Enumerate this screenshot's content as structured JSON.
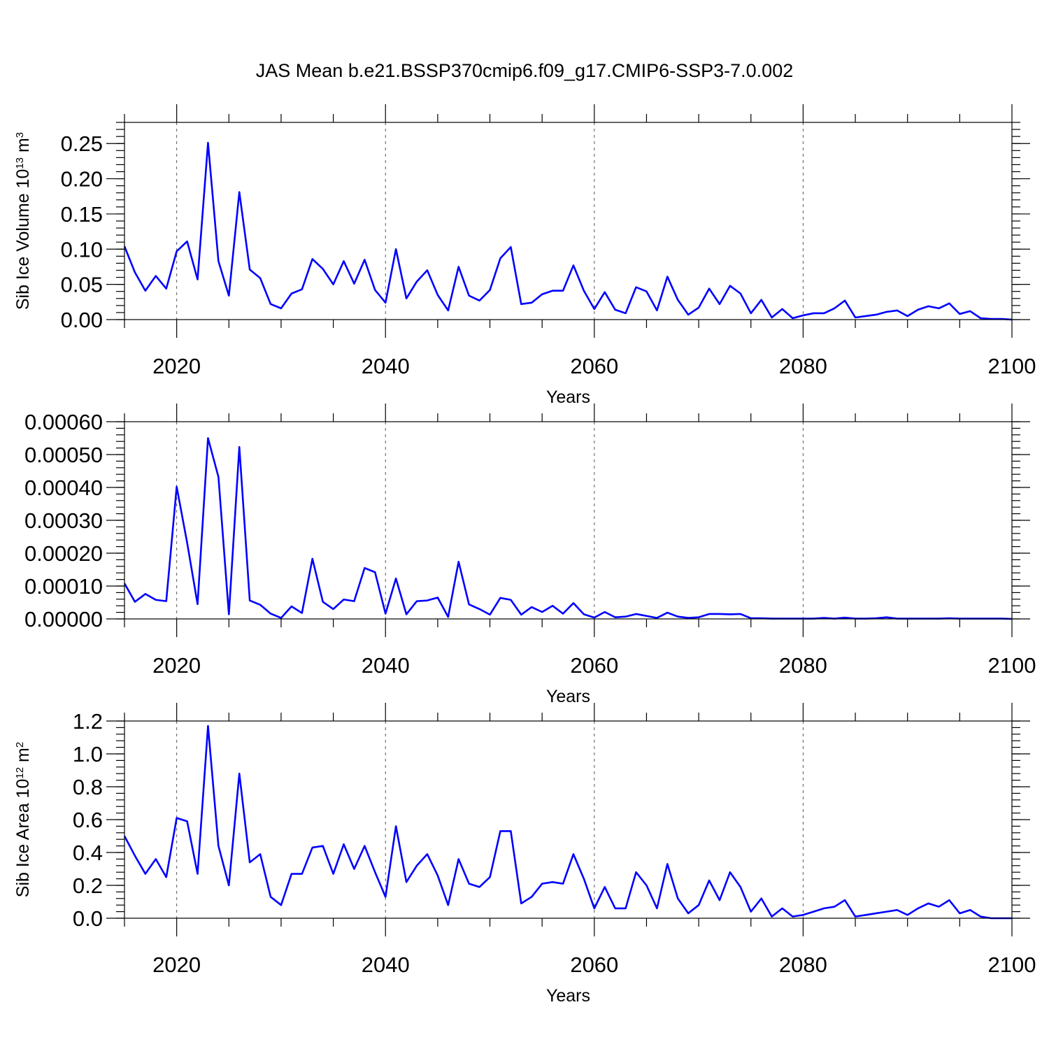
{
  "title": "JAS Mean b.e21.BSSP370cmip6.f09_g17.CMIP6-SSP3-7.0.002",
  "line_color": "#0000ff",
  "chart_data": [
    {
      "type": "line",
      "ylabel": "Sib Ice Volume 10",
      "ylabel_sup": "13",
      "ylabel_unit": " m",
      "ylabel_unit_sup": "3",
      "xlabel": "Years",
      "xlim": [
        2015,
        2100
      ],
      "ylim": [
        0,
        0.28
      ],
      "xticks": [
        "2020",
        "2040",
        "2060",
        "2080",
        "2100"
      ],
      "yticks": [
        "0.00",
        "0.05",
        "0.10",
        "0.15",
        "0.20",
        "0.25"
      ],
      "grid_x": true,
      "x": [
        2015,
        2016,
        2017,
        2018,
        2019,
        2020,
        2021,
        2022,
        2023,
        2024,
        2025,
        2026,
        2027,
        2028,
        2029,
        2030,
        2031,
        2032,
        2033,
        2034,
        2035,
        2036,
        2037,
        2038,
        2039,
        2040,
        2041,
        2042,
        2043,
        2044,
        2045,
        2046,
        2047,
        2048,
        2049,
        2050,
        2051,
        2052,
        2053,
        2054,
        2055,
        2056,
        2057,
        2058,
        2059,
        2060,
        2061,
        2062,
        2063,
        2064,
        2065,
        2066,
        2067,
        2068,
        2069,
        2070,
        2071,
        2072,
        2073,
        2074,
        2075,
        2076,
        2077,
        2078,
        2079,
        2080,
        2081,
        2082,
        2083,
        2084,
        2085,
        2086,
        2087,
        2088,
        2089,
        2090,
        2091,
        2092,
        2093,
        2094,
        2095,
        2096,
        2097,
        2098,
        2099,
        2100
      ],
      "values": [
        0.104,
        0.067,
        0.041,
        0.062,
        0.044,
        0.097,
        0.111,
        0.057,
        0.251,
        0.083,
        0.034,
        0.181,
        0.071,
        0.059,
        0.022,
        0.016,
        0.037,
        0.043,
        0.086,
        0.072,
        0.05,
        0.083,
        0.051,
        0.085,
        0.042,
        0.024,
        0.1,
        0.03,
        0.054,
        0.07,
        0.035,
        0.013,
        0.075,
        0.034,
        0.027,
        0.042,
        0.087,
        0.103,
        0.022,
        0.024,
        0.036,
        0.041,
        0.041,
        0.077,
        0.041,
        0.015,
        0.039,
        0.014,
        0.009,
        0.046,
        0.04,
        0.013,
        0.061,
        0.028,
        0.007,
        0.017,
        0.044,
        0.022,
        0.048,
        0.037,
        0.009,
        0.028,
        0.003,
        0.015,
        0.002,
        0.006,
        0.009,
        0.009,
        0.016,
        0.027,
        0.003,
        0.005,
        0.007,
        0.011,
        0.013,
        0.005,
        0.014,
        0.019,
        0.016,
        0.023,
        0.008,
        0.012,
        0.002,
        0.001,
        0.001,
        0.0
      ]
    },
    {
      "type": "line",
      "ylabel": "",
      "xlabel": "Years",
      "xlim": [
        2015,
        2100
      ],
      "ylim": [
        0,
        0.0006
      ],
      "xticks": [
        "2020",
        "2040",
        "2060",
        "2080",
        "2100"
      ],
      "yticks": [
        "0.00000",
        "0.00010",
        "0.00020",
        "0.00030",
        "0.00040",
        "0.00050",
        "0.00060"
      ],
      "grid_x": true,
      "x": [
        2015,
        2016,
        2017,
        2018,
        2019,
        2020,
        2021,
        2022,
        2023,
        2024,
        2025,
        2026,
        2027,
        2028,
        2029,
        2030,
        2031,
        2032,
        2033,
        2034,
        2035,
        2036,
        2037,
        2038,
        2039,
        2040,
        2041,
        2042,
        2043,
        2044,
        2045,
        2046,
        2047,
        2048,
        2049,
        2050,
        2051,
        2052,
        2053,
        2054,
        2055,
        2056,
        2057,
        2058,
        2059,
        2060,
        2061,
        2062,
        2063,
        2064,
        2065,
        2066,
        2067,
        2068,
        2069,
        2070,
        2071,
        2072,
        2073,
        2074,
        2075,
        2076,
        2077,
        2078,
        2079,
        2080,
        2081,
        2082,
        2083,
        2084,
        2085,
        2086,
        2087,
        2088,
        2089,
        2090,
        2091,
        2092,
        2093,
        2094,
        2095,
        2096,
        2097,
        2098,
        2099,
        2100
      ],
      "values": [
        0.000108,
        5.2e-05,
        7.6e-05,
        5.8e-05,
        5.4e-05,
        0.000402,
        0.000232,
        4.5e-05,
        0.00055,
        0.000432,
        1.4e-05,
        0.000523,
        5.6e-05,
        4.3e-05,
        1.6e-05,
        3e-06,
        3.8e-05,
        1.8e-05,
        0.000183,
        5.2e-05,
        3e-05,
        5.9e-05,
        5.4e-05,
        0.000155,
        0.000142,
        1.6e-05,
        0.000123,
        1.4e-05,
        5.4e-05,
        5.6e-05,
        6.5e-05,
        6e-06,
        0.000174,
        4.4e-05,
        3e-05,
        1.3e-05,
        6.4e-05,
        5.8e-05,
        1.3e-05,
        3.6e-05,
        2.1e-05,
        4e-05,
        1.6e-05,
        4.8e-05,
        1.4e-05,
        4e-06,
        2.1e-05,
        5e-06,
        7e-06,
        1.5e-05,
        9e-06,
        3e-06,
        1.9e-05,
        7e-06,
        3e-06,
        5e-06,
        1.5e-05,
        1.5e-05,
        1.4e-05,
        1.5e-05,
        2e-06,
        2e-06,
        1e-06,
        1e-06,
        1e-06,
        1e-06,
        1e-06,
        3e-06,
        1e-06,
        4e-06,
        1e-06,
        1e-06,
        2e-06,
        5e-06,
        1e-06,
        1e-06,
        1e-06,
        1e-06,
        1e-06,
        2e-06,
        1e-06,
        1e-06,
        1e-06,
        1e-06,
        1e-06,
        0.0
      ]
    },
    {
      "type": "line",
      "ylabel": "Sib Ice Area 10",
      "ylabel_sup": "12",
      "ylabel_unit": " m",
      "ylabel_unit_sup": "2",
      "xlabel": "Years",
      "xlim": [
        2015,
        2100
      ],
      "ylim": [
        0,
        1.2
      ],
      "xticks": [
        "2020",
        "2040",
        "2060",
        "2080",
        "2100"
      ],
      "yticks": [
        "0.0",
        "0.2",
        "0.4",
        "0.6",
        "0.8",
        "1.0",
        "1.2"
      ],
      "grid_x": true,
      "x": [
        2015,
        2016,
        2017,
        2018,
        2019,
        2020,
        2021,
        2022,
        2023,
        2024,
        2025,
        2026,
        2027,
        2028,
        2029,
        2030,
        2031,
        2032,
        2033,
        2034,
        2035,
        2036,
        2037,
        2038,
        2039,
        2040,
        2041,
        2042,
        2043,
        2044,
        2045,
        2046,
        2047,
        2048,
        2049,
        2050,
        2051,
        2052,
        2053,
        2054,
        2055,
        2056,
        2057,
        2058,
        2059,
        2060,
        2061,
        2062,
        2063,
        2064,
        2065,
        2066,
        2067,
        2068,
        2069,
        2070,
        2071,
        2072,
        2073,
        2074,
        2075,
        2076,
        2077,
        2078,
        2079,
        2080,
        2081,
        2082,
        2083,
        2084,
        2085,
        2086,
        2087,
        2088,
        2089,
        2090,
        2091,
        2092,
        2093,
        2094,
        2095,
        2096,
        2097,
        2098,
        2099,
        2100
      ],
      "values": [
        0.5,
        0.38,
        0.27,
        0.36,
        0.25,
        0.61,
        0.59,
        0.27,
        1.17,
        0.44,
        0.2,
        0.88,
        0.34,
        0.39,
        0.13,
        0.08,
        0.27,
        0.27,
        0.43,
        0.44,
        0.27,
        0.45,
        0.3,
        0.44,
        0.28,
        0.13,
        0.56,
        0.22,
        0.32,
        0.39,
        0.26,
        0.08,
        0.36,
        0.21,
        0.19,
        0.25,
        0.53,
        0.53,
        0.09,
        0.13,
        0.21,
        0.22,
        0.21,
        0.39,
        0.24,
        0.06,
        0.19,
        0.06,
        0.06,
        0.28,
        0.2,
        0.06,
        0.33,
        0.12,
        0.03,
        0.08,
        0.23,
        0.11,
        0.28,
        0.19,
        0.04,
        0.12,
        0.01,
        0.06,
        0.01,
        0.02,
        0.04,
        0.06,
        0.07,
        0.11,
        0.01,
        0.02,
        0.03,
        0.04,
        0.05,
        0.02,
        0.06,
        0.09,
        0.07,
        0.11,
        0.03,
        0.05,
        0.01,
        0.0,
        0.0,
        0.0
      ]
    }
  ]
}
